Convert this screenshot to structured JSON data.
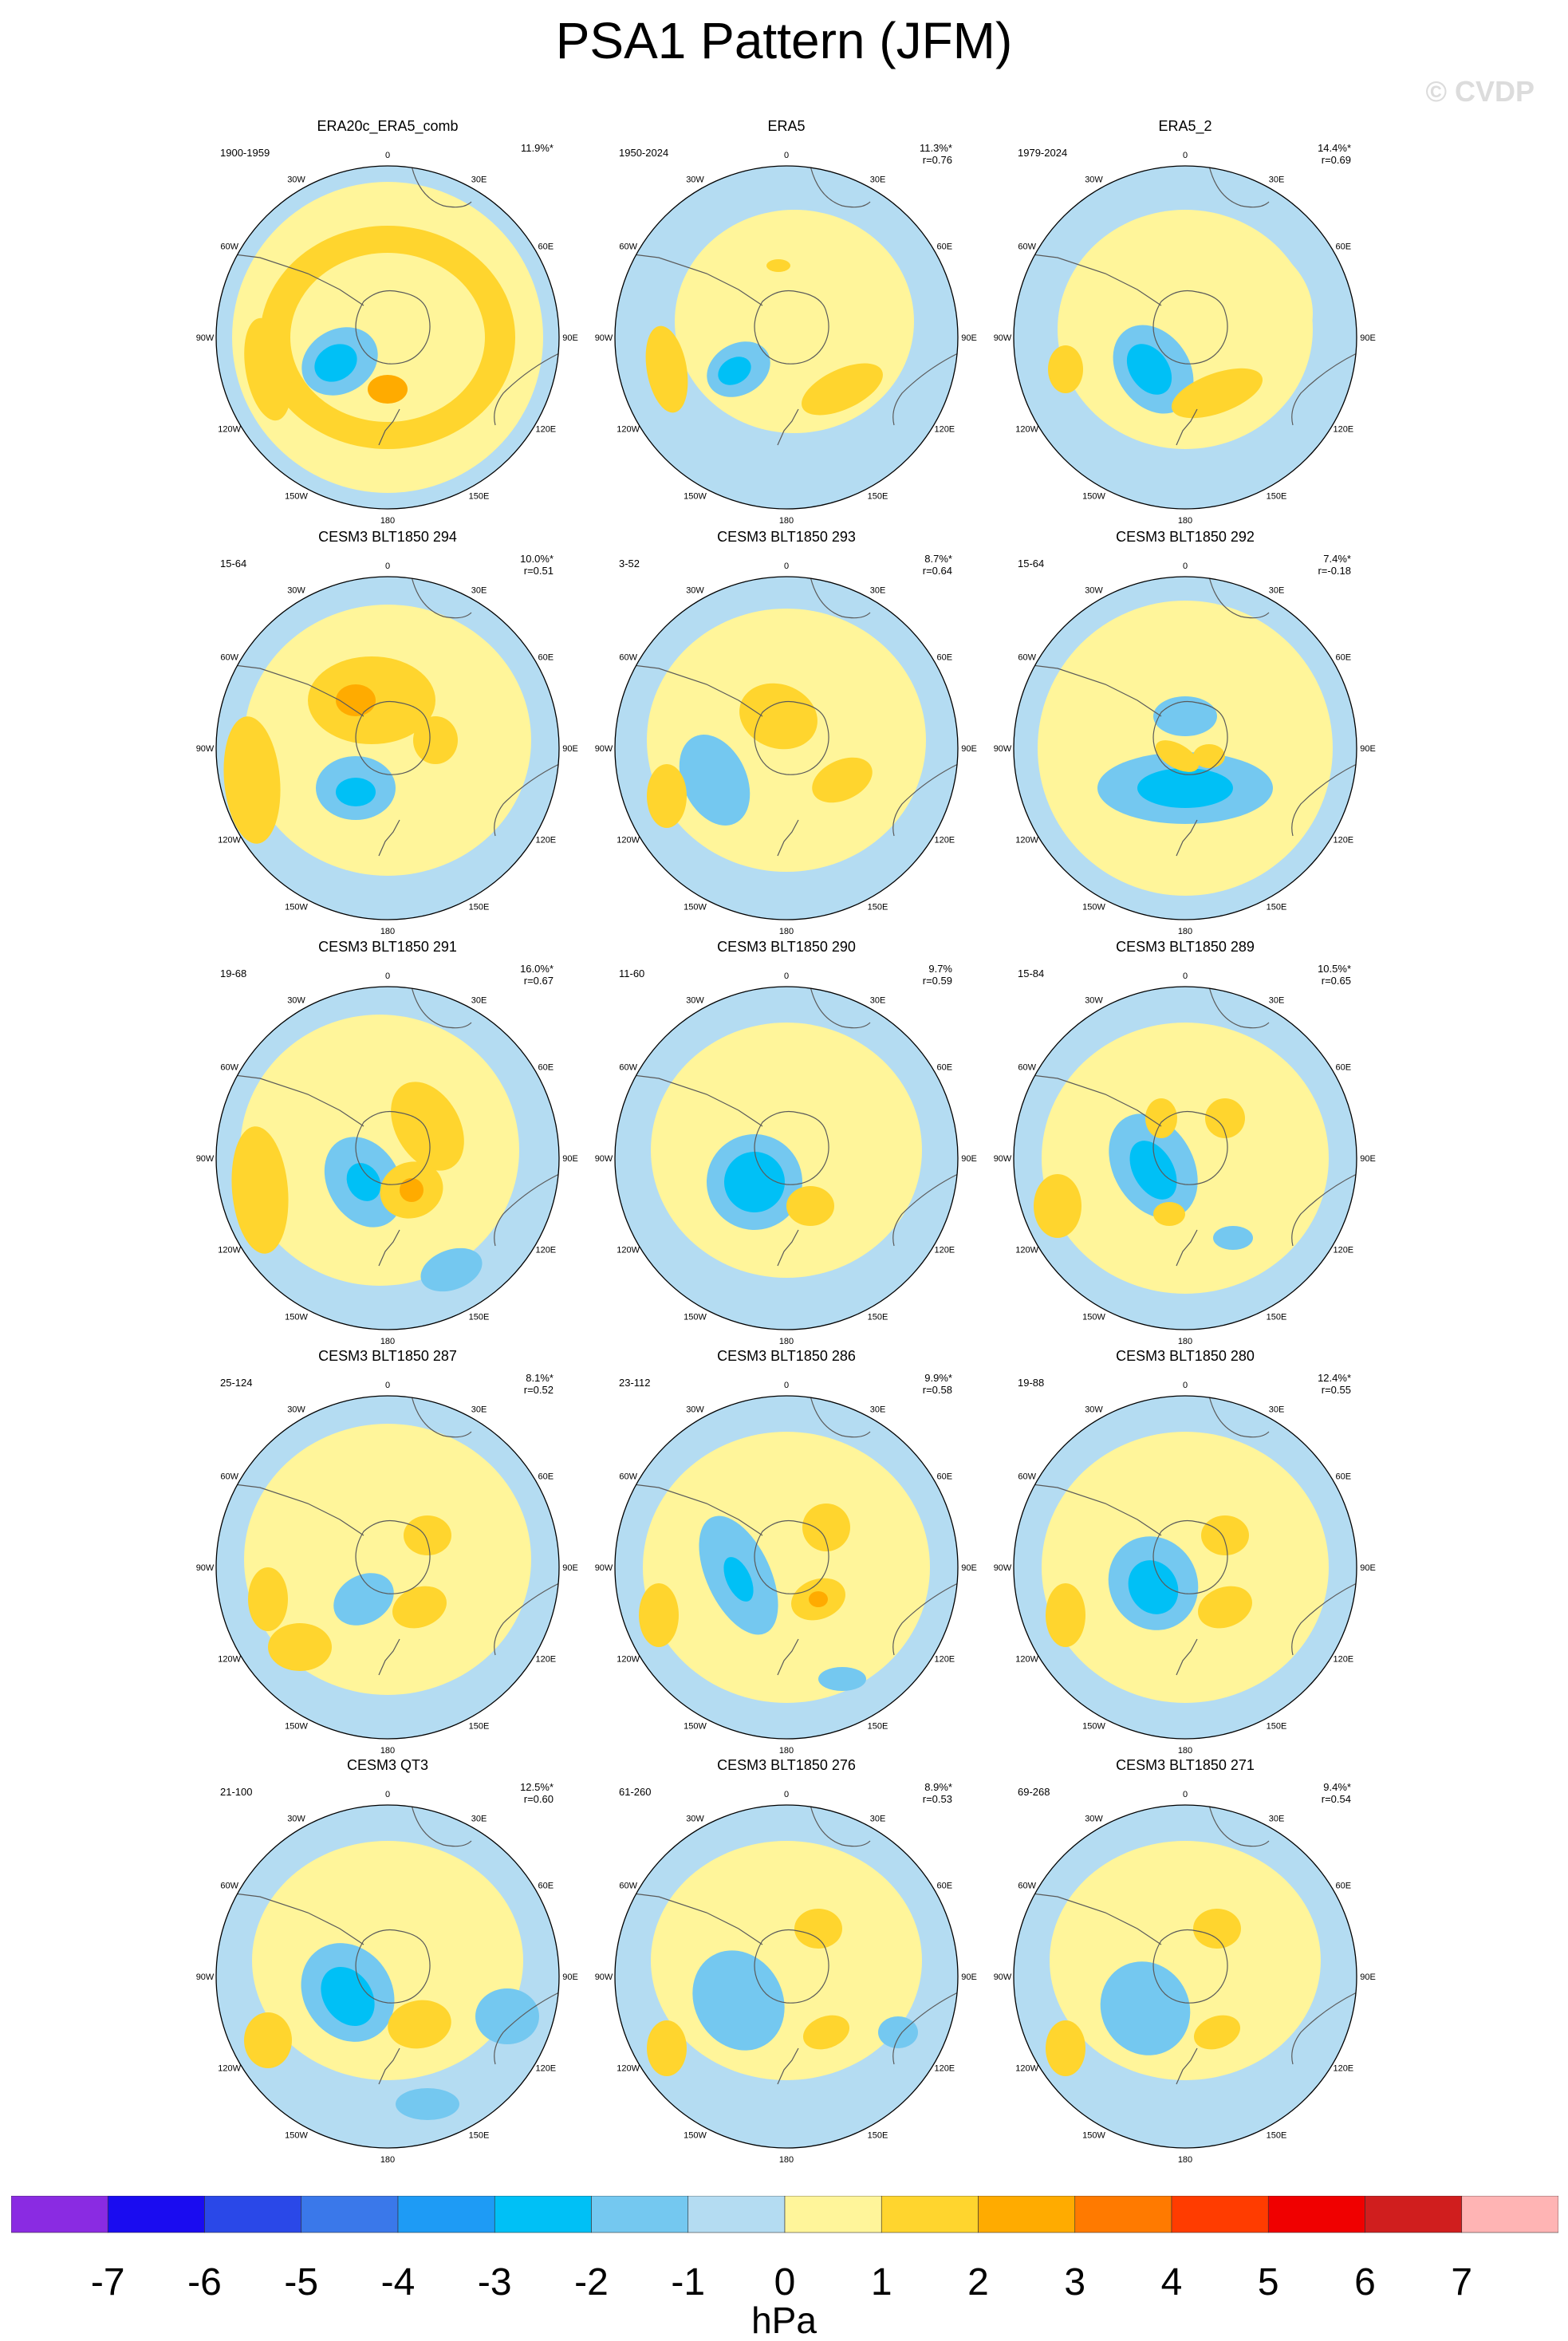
{
  "title": "PSA1 Pattern (JFM)",
  "watermark": "© CVDP",
  "units": "hPa",
  "longitude_labels": [
    "0",
    "30E",
    "60E",
    "90E",
    "120E",
    "150E",
    "180",
    "150W",
    "120W",
    "90W",
    "60W",
    "30W"
  ],
  "colorbar": {
    "ticks": [
      "-7",
      "-6",
      "-5",
      "-4",
      "-3",
      "-2",
      "-1",
      "0",
      "1",
      "2",
      "3",
      "4",
      "5",
      "6",
      "7"
    ],
    "colors": [
      "#8a2be2",
      "#1a0cf0",
      "#2a48e8",
      "#3a78ea",
      "#1e9bf5",
      "#00c0f6",
      "#74c8f0",
      "#b4dcf2",
      "#fff59a",
      "#ffd52e",
      "#ffab00",
      "#ff7a00",
      "#ff3c00",
      "#f00000",
      "#d01e1e",
      "#ffb4b4"
    ]
  },
  "panels": [
    {
      "title": "ERA20c_ERA5_comb",
      "years": "1900-1959",
      "pct": "11.9%*",
      "r": ""
    },
    {
      "title": "ERA5",
      "years": "1950-2024",
      "pct": "11.3%*",
      "r": "r=0.76"
    },
    {
      "title": "ERA5_2",
      "years": "1979-2024",
      "pct": "14.4%*",
      "r": "r=0.69"
    },
    {
      "title": "CESM3 BLT1850 294",
      "years": "15-64",
      "pct": "10.0%*",
      "r": "r=0.51"
    },
    {
      "title": "CESM3 BLT1850 293",
      "years": "3-52",
      "pct": "8.7%*",
      "r": "r=0.64"
    },
    {
      "title": "CESM3 BLT1850 292",
      "years": "15-64",
      "pct": "7.4%*",
      "r": "r=-0.18"
    },
    {
      "title": "CESM3 BLT1850 291",
      "years": "19-68",
      "pct": "16.0%*",
      "r": "r=0.67"
    },
    {
      "title": "CESM3 BLT1850 290",
      "years": "11-60",
      "pct": "9.7%",
      "r": "r=0.59"
    },
    {
      "title": "CESM3 BLT1850 289",
      "years": "15-84",
      "pct": "10.5%*",
      "r": "r=0.65"
    },
    {
      "title": "CESM3 BLT1850 287",
      "years": "25-124",
      "pct": "8.1%*",
      "r": "r=0.52"
    },
    {
      "title": "CESM3 BLT1850 286",
      "years": "23-112",
      "pct": "9.9%*",
      "r": "r=0.58"
    },
    {
      "title": "CESM3 BLT1850 280",
      "years": "19-88",
      "pct": "12.4%*",
      "r": "r=0.55"
    },
    {
      "title": "CESM3 QT3",
      "years": "21-100",
      "pct": "12.5%*",
      "r": "r=0.60"
    },
    {
      "title": "CESM3 BLT1850 276",
      "years": "61-260",
      "pct": "8.9%*",
      "r": "r=0.53"
    },
    {
      "title": "CESM3 BLT1850 271",
      "years": "69-268",
      "pct": "9.4%*",
      "r": "r=0.54"
    }
  ]
}
